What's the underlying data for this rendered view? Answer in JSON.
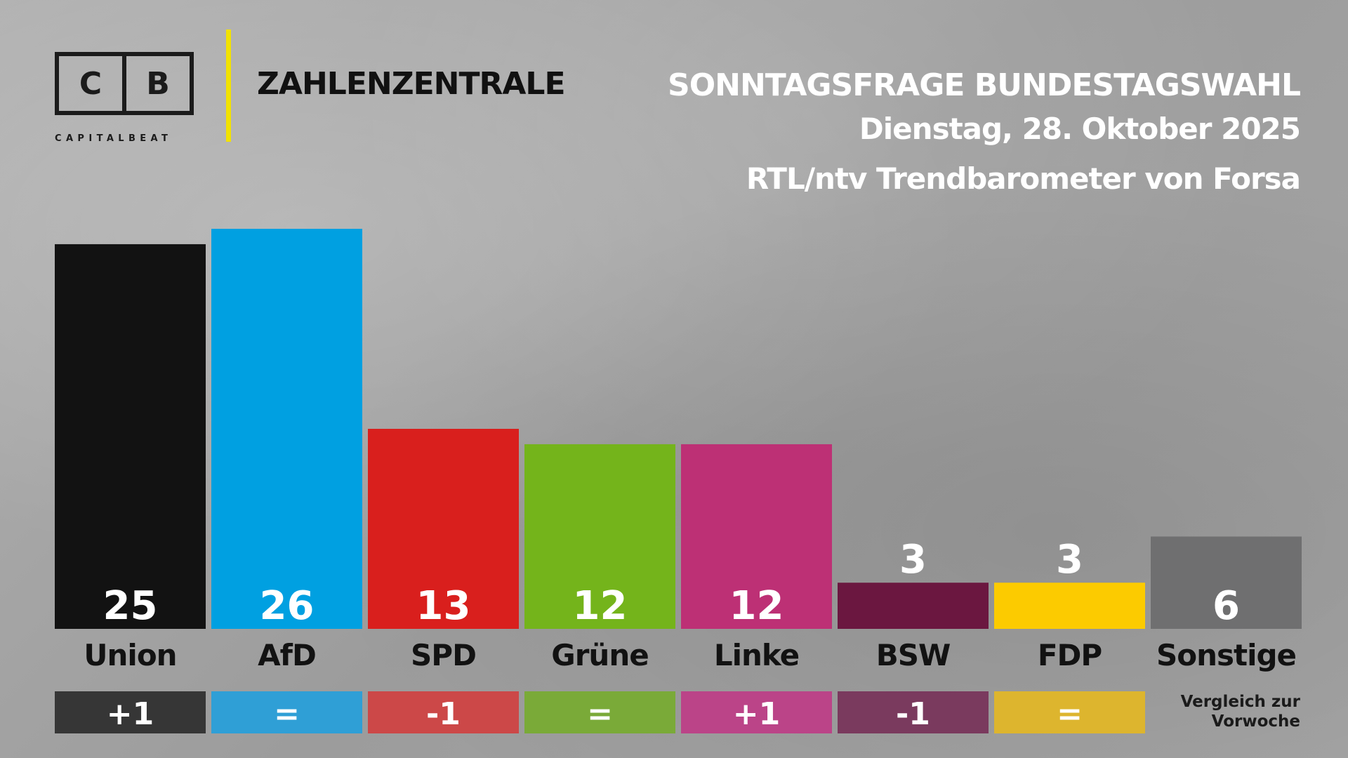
{
  "brand": {
    "logo_left": "C",
    "logo_right": "B",
    "logo_sub": "CAPITALBEAT",
    "section": "ZAHLENZENTRALE",
    "accent_color": "#f2e200"
  },
  "header": {
    "title": "SONNTAGSFRAGE BUNDESTAGSWAHL",
    "date": "Dienstag, 28. Oktober 2025",
    "source": "RTL/ntv Trendbarometer von Forsa"
  },
  "chart_data": {
    "type": "bar",
    "categories": [
      "Union",
      "AfD",
      "SPD",
      "Grüne",
      "Linke",
      "BSW",
      "FDP",
      "Sonstige"
    ],
    "values": [
      25,
      26,
      13,
      12,
      12,
      3,
      3,
      6
    ],
    "value_labels": [
      "25",
      "26",
      "13",
      "12",
      "12",
      "3",
      "3",
      "6"
    ],
    "colors": [
      "#121212",
      "#00a0e1",
      "#d91f1d",
      "#74b41b",
      "#bd3075",
      "#6b1740",
      "#fccb00",
      "#6f6f70"
    ],
    "change_colors": [
      "#363636",
      "#2f9fd6",
      "#cc4848",
      "#7aaa38",
      "#bb4488",
      "#7a3a5e",
      "#ddb52e",
      null
    ],
    "changes": [
      "+1",
      "=",
      "-1",
      "=",
      "+1",
      "-1",
      "=",
      null
    ],
    "change_note": "Vergleich zur\nVorwoche",
    "ylim": [
      0,
      26
    ],
    "grid": false,
    "legend": "none"
  }
}
